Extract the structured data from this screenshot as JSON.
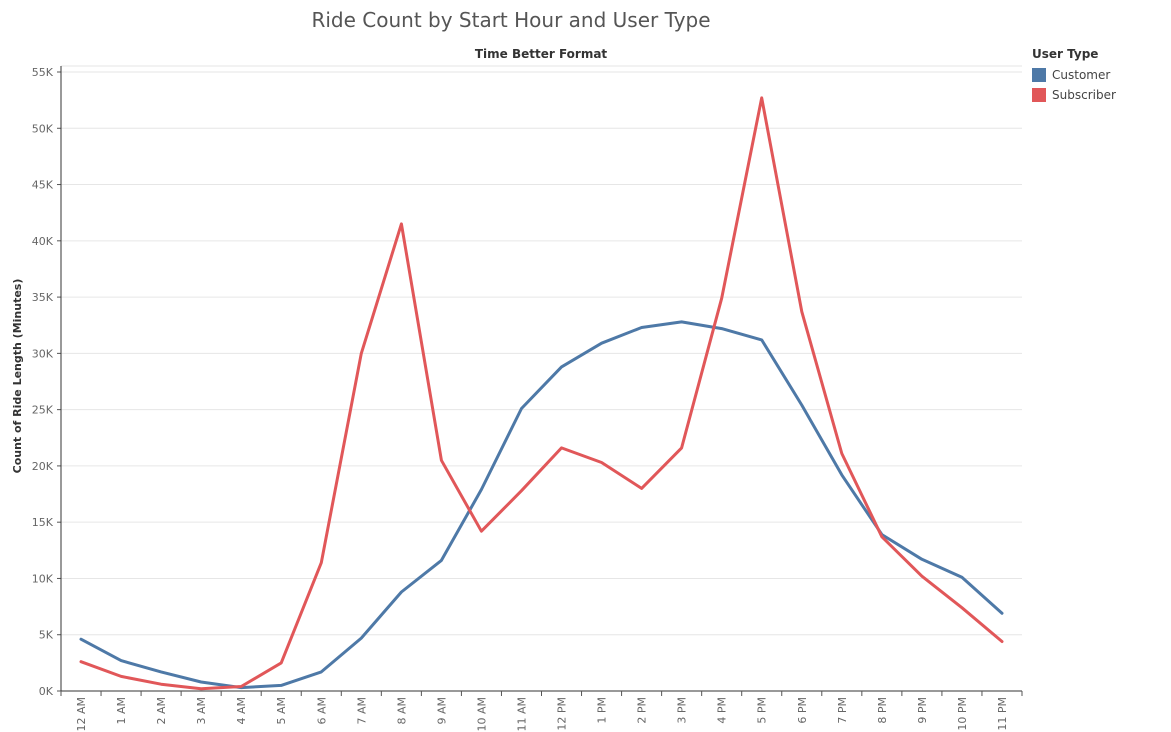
{
  "chart_data": {
    "type": "line",
    "title": "Ride Count by Start Hour and User Type",
    "subtitle": "Time Better Format",
    "ylabel": "Count of Ride Length (Minutes)",
    "xlabel": "",
    "ylim": [
      0,
      55000
    ],
    "yticks": [
      0,
      5000,
      10000,
      15000,
      20000,
      25000,
      30000,
      35000,
      40000,
      45000,
      50000,
      55000
    ],
    "ytick_labels": [
      "0K",
      "5K",
      "10K",
      "15K",
      "20K",
      "25K",
      "30K",
      "35K",
      "40K",
      "45K",
      "50K",
      "55K"
    ],
    "grid": true,
    "legend_placement": "top-right",
    "legend_title": "User Type",
    "categories": [
      "12 AM",
      "1 AM",
      "2 AM",
      "3 AM",
      "4 AM",
      "5 AM",
      "6 AM",
      "7 AM",
      "8 AM",
      "9 AM",
      "10 AM",
      "11 AM",
      "12 PM",
      "1 PM",
      "2 PM",
      "3 PM",
      "4 PM",
      "5 PM",
      "6 PM",
      "7 PM",
      "8 PM",
      "9 PM",
      "10 PM",
      "11 PM"
    ],
    "series": [
      {
        "name": "Customer",
        "color": "#4e79a7",
        "values": [
          4600,
          2700,
          1700,
          800,
          300,
          500,
          1700,
          4700,
          8800,
          11600,
          17900,
          25100,
          28800,
          30900,
          32300,
          32800,
          32200,
          31200,
          25400,
          19200,
          13900,
          11700,
          10100,
          6900
        ]
      },
      {
        "name": "Subscriber",
        "color": "#e15759",
        "values": [
          2600,
          1300,
          600,
          200,
          400,
          2500,
          11400,
          30000,
          41500,
          20500,
          14200,
          17800,
          21600,
          20300,
          18000,
          21600,
          34900,
          52700,
          33700,
          21100,
          13700,
          10200,
          7400,
          4400
        ]
      }
    ]
  }
}
